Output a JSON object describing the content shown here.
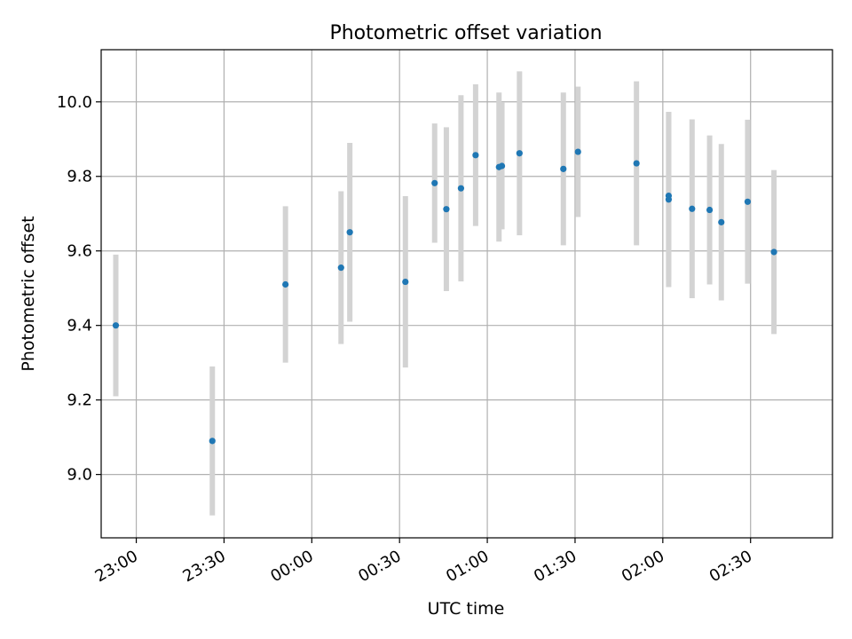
{
  "chart_data": {
    "type": "scatter",
    "title": "Photometric offset variation",
    "xlabel": "UTC time",
    "ylabel": "Photometric offset",
    "x_axis_kind": "time",
    "xlim": [
      "22:48",
      "02:58"
    ],
    "ylim": [
      8.83,
      10.14
    ],
    "x_ticks": [
      "23:00",
      "23:30",
      "00:00",
      "00:30",
      "01:00",
      "01:30",
      "02:00",
      "02:30"
    ],
    "y_ticks": [
      "9.0",
      "9.2",
      "9.4",
      "9.6",
      "9.8",
      "10.0"
    ],
    "grid": true,
    "legend": "none",
    "colors": {
      "marker": "#1f77b4",
      "errorbar": "#d3d3d3",
      "grid": "#b0b0b0"
    },
    "series": [
      {
        "points": [
          {
            "x": "22:53",
            "y": 9.4,
            "err": 0.19
          },
          {
            "x": "23:26",
            "y": 9.09,
            "err": 0.2
          },
          {
            "x": "23:51",
            "y": 9.51,
            "err": 0.21
          },
          {
            "x": "00:10",
            "y": 9.555,
            "err": 0.205
          },
          {
            "x": "00:13",
            "y": 9.65,
            "err": 0.24
          },
          {
            "x": "00:32",
            "y": 9.517,
            "err": 0.23
          },
          {
            "x": "00:42",
            "y": 9.782,
            "err": 0.16
          },
          {
            "x": "00:46",
            "y": 9.712,
            "err": 0.22
          },
          {
            "x": "00:51",
            "y": 9.768,
            "err": 0.25
          },
          {
            "x": "00:56",
            "y": 9.857,
            "err": 0.19
          },
          {
            "x": "01:04",
            "y": 9.825,
            "err": 0.2
          },
          {
            "x": "01:05",
            "y": 9.828,
            "err": 0.17
          },
          {
            "x": "01:11",
            "y": 9.862,
            "err": 0.22
          },
          {
            "x": "01:26",
            "y": 9.82,
            "err": 0.205
          },
          {
            "x": "01:31",
            "y": 9.866,
            "err": 0.175
          },
          {
            "x": "01:51",
            "y": 9.835,
            "err": 0.22
          },
          {
            "x": "02:02",
            "y": 9.738,
            "err": 0.235
          },
          {
            "x": "02:02",
            "y": 9.748,
            "err": 0.225
          },
          {
            "x": "02:10",
            "y": 9.713,
            "err": 0.24
          },
          {
            "x": "02:16",
            "y": 9.71,
            "err": 0.2
          },
          {
            "x": "02:20",
            "y": 9.677,
            "err": 0.21
          },
          {
            "x": "02:29",
            "y": 9.732,
            "err": 0.22
          },
          {
            "x": "02:38",
            "y": 9.597,
            "err": 0.22
          }
        ]
      }
    ]
  }
}
